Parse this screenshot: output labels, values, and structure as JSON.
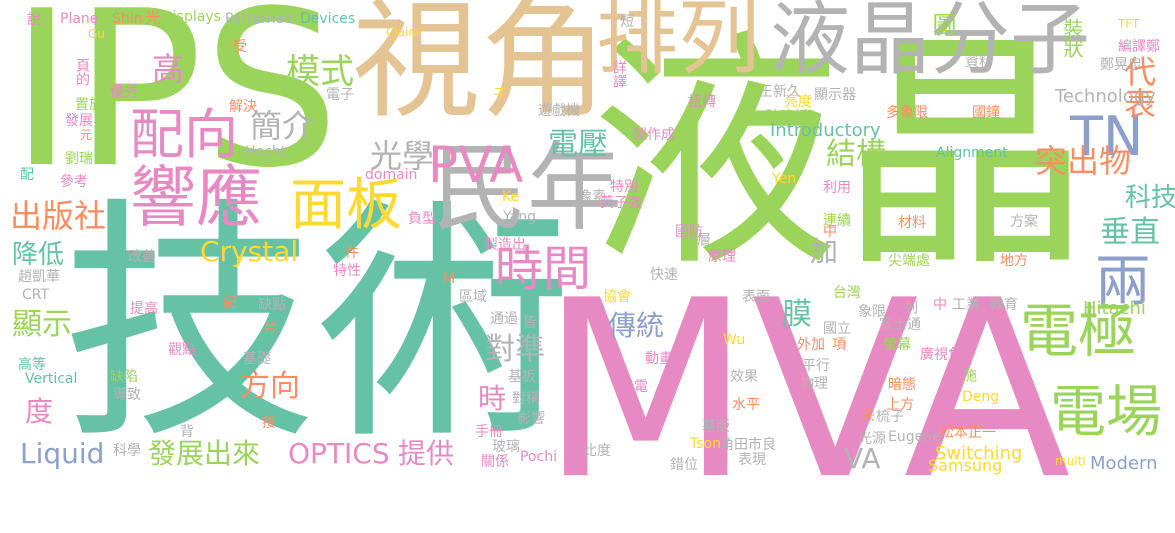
{
  "palette": {
    "green": "#9bd45a",
    "teal": "#66c2a5",
    "tan": "#e5c494",
    "gray": "#b3b3b3",
    "pink": "#e78ac3",
    "blue": "#8da0cb",
    "orange": "#fc8d62",
    "yellow": "#ffd92f"
  },
  "words": [
    {
      "t": "IPS",
      "c": "green"
    },
    {
      "t": "視角",
      "c": "tan"
    },
    {
      "t": "液晶",
      "c": "green"
    },
    {
      "t": "技術",
      "c": "teal"
    },
    {
      "t": "MVA",
      "c": "pink"
    },
    {
      "t": "排列",
      "c": "tan"
    },
    {
      "t": "液晶分子",
      "c": "gray"
    },
    {
      "t": "民年",
      "c": "gray"
    },
    {
      "t": "響應",
      "c": "pink"
    },
    {
      "t": "面板",
      "c": "yellow"
    },
    {
      "t": "配向",
      "c": "pink"
    },
    {
      "t": "PVA",
      "c": "pink"
    },
    {
      "t": "時間",
      "c": "pink"
    },
    {
      "t": "電極",
      "c": "green"
    },
    {
      "t": "電場",
      "c": "green"
    },
    {
      "t": "TN",
      "c": "blue"
    },
    {
      "t": "兩",
      "c": "blue"
    },
    {
      "t": "出版社",
      "c": "orange"
    },
    {
      "t": "模式",
      "c": "green"
    },
    {
      "t": "高",
      "c": "pink"
    },
    {
      "t": "光學",
      "c": "gray"
    },
    {
      "t": "簡介",
      "c": "gray"
    },
    {
      "t": "電壓",
      "c": "teal"
    },
    {
      "t": "結構",
      "c": "green"
    },
    {
      "t": "突出物",
      "c": "orange"
    },
    {
      "t": "代表",
      "c": "orange"
    },
    {
      "t": "科技",
      "c": "teal"
    },
    {
      "t": "垂直",
      "c": "teal"
    },
    {
      "t": "降低",
      "c": "teal"
    },
    {
      "t": "Crystal",
      "c": "yellow"
    },
    {
      "t": "顯示",
      "c": "green"
    },
    {
      "t": "方向",
      "c": "orange"
    },
    {
      "t": "度",
      "c": "pink"
    },
    {
      "t": "傳統",
      "c": "blue"
    },
    {
      "t": "膜",
      "c": "teal"
    },
    {
      "t": "對準",
      "c": "gray"
    },
    {
      "t": "時",
      "c": "pink"
    },
    {
      "t": "加",
      "c": "gray"
    },
    {
      "t": "發展出來",
      "c": "green"
    },
    {
      "t": "OPTICS",
      "c": "pink"
    },
    {
      "t": "提供",
      "c": "pink"
    },
    {
      "t": "Liquid",
      "c": "blue"
    },
    {
      "t": "VA",
      "c": "gray"
    },
    {
      "t": "Modern",
      "c": "blue"
    },
    {
      "t": "圖",
      "c": "green"
    },
    {
      "t": "裝狀",
      "c": "green"
    },
    {
      "t": "Introductory",
      "c": "teal"
    },
    {
      "t": "Technology",
      "c": "gray"
    },
    {
      "t": "Alignment",
      "c": "teal"
    },
    {
      "t": "Hitachi",
      "c": "green"
    },
    {
      "t": "Switching",
      "c": "yellow"
    },
    {
      "t": "Samsung",
      "c": "yellow"
    },
    {
      "t": "Vertical",
      "c": "teal"
    },
    {
      "t": "Hecht",
      "c": "gray"
    },
    {
      "t": "domain",
      "c": "pink"
    },
    {
      "t": "Plane",
      "c": "pink"
    },
    {
      "t": "Shin",
      "c": "orange"
    },
    {
      "t": "光",
      "c": "orange"
    },
    {
      "t": "Displays",
      "c": "green"
    },
    {
      "t": "Patterned",
      "c": "gray"
    },
    {
      "t": "Devices",
      "c": "teal"
    },
    {
      "t": "Claire",
      "c": "yellow"
    },
    {
      "t": "TFT",
      "c": "yellow"
    },
    {
      "t": "Gu",
      "c": "yellow"
    },
    {
      "t": "說",
      "c": "pink"
    },
    {
      "t": "受",
      "c": "orange"
    },
    {
      "t": "短",
      "c": "gray"
    },
    {
      "t": "編譯鄭",
      "c": "pink"
    },
    {
      "t": "鄭晃忠",
      "c": "gray"
    },
    {
      "t": "資料",
      "c": "gray"
    },
    {
      "t": "詳譯",
      "c": "pink"
    },
    {
      "t": "扭轉",
      "c": "pink"
    },
    {
      "t": "王新久",
      "c": "gray"
    },
    {
      "t": "亮度",
      "c": "yellow"
    },
    {
      "t": "顯示器",
      "c": "gray"
    },
    {
      "t": "玻璃板",
      "c": "green"
    },
    {
      "t": "多象限",
      "c": "orange"
    },
    {
      "t": "國鐘",
      "c": "orange"
    },
    {
      "t": "遊戲機",
      "c": "gray"
    },
    {
      "t": "製作成",
      "c": "pink"
    },
    {
      "t": "子",
      "c": "yellow"
    },
    {
      "t": "電子",
      "c": "gray"
    },
    {
      "t": "優秀",
      "c": "pink"
    },
    {
      "t": "解決",
      "c": "orange"
    },
    {
      "t": "頁的",
      "c": "pink"
    },
    {
      "t": "置於",
      "c": "green"
    },
    {
      "t": "發展",
      "c": "pink"
    },
    {
      "t": "元",
      "c": "orange"
    },
    {
      "t": "劉瑞",
      "c": "green"
    },
    {
      "t": "參考",
      "c": "pink"
    },
    {
      "t": "配",
      "c": "teal"
    },
    {
      "t": "像素",
      "c": "gray"
    },
    {
      "t": "特別",
      "c": "pink"
    },
    {
      "t": "黃子強",
      "c": "pink"
    },
    {
      "t": "利用",
      "c": "pink"
    },
    {
      "t": "Yen",
      "c": "yellow"
    },
    {
      "t": "Ke",
      "c": "yellow"
    },
    {
      "t": "Yang",
      "c": "gray"
    },
    {
      "t": "負型",
      "c": "pink"
    },
    {
      "t": "製造出",
      "c": "pink"
    },
    {
      "t": "連續",
      "c": "green"
    },
    {
      "t": "材料",
      "c": "orange"
    },
    {
      "t": "方案",
      "c": "gray"
    },
    {
      "t": "中",
      "c": "orange"
    },
    {
      "t": "國防",
      "c": "pink"
    },
    {
      "t": "層",
      "c": "gray"
    },
    {
      "t": "原理",
      "c": "pink"
    },
    {
      "t": "快速",
      "c": "gray"
    },
    {
      "t": "尖端處",
      "c": "green"
    },
    {
      "t": "地方",
      "c": "orange"
    },
    {
      "t": "改善",
      "c": "gray"
    },
    {
      "t": "件",
      "c": "orange"
    },
    {
      "t": "特性",
      "c": "pink"
    },
    {
      "t": "趙凱華",
      "c": "gray"
    },
    {
      "t": "CRT",
      "c": "gray"
    },
    {
      "t": "M",
      "c": "orange"
    },
    {
      "t": "區域",
      "c": "gray"
    },
    {
      "t": "提高",
      "c": "pink"
    },
    {
      "t": "紀",
      "c": "orange"
    },
    {
      "t": "缺點",
      "c": "gray"
    },
    {
      "t": "表面",
      "c": "gray"
    },
    {
      "t": "台灣",
      "c": "green"
    },
    {
      "t": "象限",
      "c": "gray"
    },
    {
      "t": "協會",
      "c": "yellow"
    },
    {
      "t": "中",
      "c": "pink"
    },
    {
      "t": "列",
      "c": "gray"
    },
    {
      "t": "工業",
      "c": "gray"
    },
    {
      "t": "教育",
      "c": "gray"
    },
    {
      "t": "通過",
      "c": "gray"
    },
    {
      "t": "皆",
      "c": "gray"
    },
    {
      "t": "片",
      "c": "orange"
    },
    {
      "t": "國立",
      "c": "gray"
    },
    {
      "t": "富士通",
      "c": "gray"
    },
    {
      "t": "項",
      "c": "orange"
    },
    {
      "t": "外加",
      "c": "orange"
    },
    {
      "t": "螢幕",
      "c": "green"
    },
    {
      "t": "觀點",
      "c": "pink"
    },
    {
      "t": "基礎",
      "c": "gray"
    },
    {
      "t": "Wu",
      "c": "yellow"
    },
    {
      "t": "動畫",
      "c": "pink"
    },
    {
      "t": "廣視角",
      "c": "pink"
    },
    {
      "t": "高等",
      "c": "teal"
    },
    {
      "t": "缺陷",
      "c": "green"
    },
    {
      "t": "基板",
      "c": "gray"
    },
    {
      "t": "效果",
      "c": "gray"
    },
    {
      "t": "平行",
      "c": "gray"
    },
    {
      "t": "暗態",
      "c": "orange"
    },
    {
      "t": "施",
      "c": "green"
    },
    {
      "t": "光電",
      "c": "pink"
    },
    {
      "t": "物理",
      "c": "gray"
    },
    {
      "t": "導致",
      "c": "gray"
    },
    {
      "t": "對稱",
      "c": "gray"
    },
    {
      "t": "影響",
      "c": "gray"
    },
    {
      "t": "水平",
      "c": "orange"
    },
    {
      "t": "上方",
      "c": "orange"
    },
    {
      "t": "Deng",
      "c": "yellow"
    },
    {
      "t": "未",
      "c": "orange"
    },
    {
      "t": "梳子",
      "c": "gray"
    },
    {
      "t": "接",
      "c": "orange"
    },
    {
      "t": "背",
      "c": "gray"
    },
    {
      "t": "手冊",
      "c": "pink"
    },
    {
      "t": "松本正一",
      "c": "orange"
    },
    {
      "t": "玻璃",
      "c": "gray"
    },
    {
      "t": "基版",
      "c": "gray"
    },
    {
      "t": "角田市良",
      "c": "gray"
    },
    {
      "t": "光源",
      "c": "gray"
    },
    {
      "t": "Eugene",
      "c": "gray"
    },
    {
      "t": "科學",
      "c": "gray"
    },
    {
      "t": "關係",
      "c": "pink"
    },
    {
      "t": "Pochi",
      "c": "pink"
    },
    {
      "t": "比度",
      "c": "gray"
    },
    {
      "t": "Tson",
      "c": "yellow"
    },
    {
      "t": "錯位",
      "c": "gray"
    },
    {
      "t": "表現",
      "c": "gray"
    },
    {
      "t": "multi",
      "c": "yellow"
    }
  ]
}
